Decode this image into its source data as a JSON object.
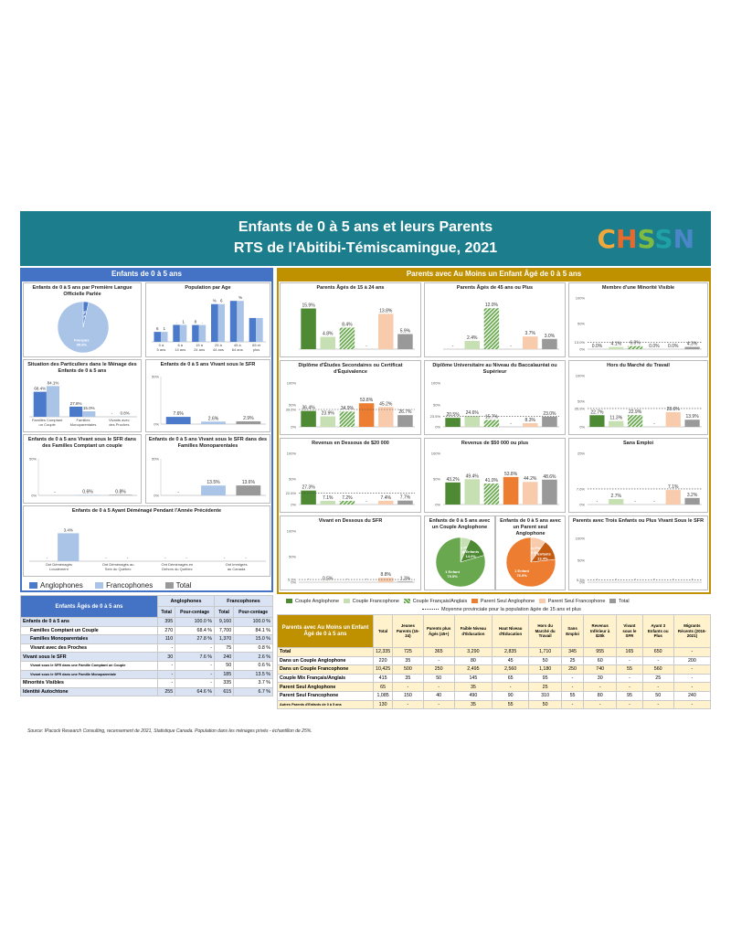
{
  "header": {
    "title_line1": "Enfants de 0 à 5 ans et leurs Parents",
    "title_line2": "RTS de l'Abitibi-Témiscamingue, 2021",
    "logo_text": "CHSSN",
    "colors": {
      "bg": "#1c7d8c",
      "logo_c": "#f0a83c",
      "logo_h": "#e66a2c",
      "logo_s1": "#7dbb42",
      "logo_s2": "#1fa1a8",
      "logo_n": "#4a86c8"
    }
  },
  "sections": {
    "left": "Enfants de 0 à 5 ans",
    "right": "Parents avec Au Moins un Enfant Âgé de 0 à 5 ans"
  },
  "colors": {
    "anglo": "#4a7ac9",
    "franco": "#aac4e8",
    "total": "#999999",
    "couple_anglo": "#4e8a34",
    "couple_franco": "#c6e0b4",
    "couple_mix": "#6aa84f",
    "parent_anglo": "#ed7d31",
    "parent_franco": "#f8cbad",
    "right_total": "#999999",
    "left_sec": "#4472c4",
    "right_sec": "#bf9000"
  },
  "legend_left": [
    "Anglophones",
    "Francophones",
    "Total"
  ],
  "legend_right": [
    "Couple Anglophone",
    "Couple Francophone",
    "Couple Français/Anglais",
    "Parent Seul Anglophone",
    "Parent Seul Francophone",
    "Total"
  ],
  "legend_right_line": "Moyenne provinciale pour la population âgée de 15 ans et plus",
  "chart_data": [
    {
      "id": "langue",
      "type": "pie",
      "title": "Enfants de 0 à 5 ans par Première Langue Officielle Parlée",
      "slices": [
        {
          "label": "Autres",
          "value": 0.0,
          "pct": "0.0%"
        },
        {
          "label": "Anglais",
          "value": 3.4,
          "pct": "3.4%"
        },
        {
          "label": "Français",
          "value": 95.6,
          "pct": "95.6%"
        }
      ]
    },
    {
      "id": "age",
      "type": "bar",
      "title": "Population par Age",
      "categories": [
        "0 à 5 ans",
        "6 à 14 ans",
        "15 à 24 ans",
        "25 à 44 ans",
        "45 à 64 ans",
        "65 et plus"
      ],
      "series": [
        {
          "name": "Anglophones",
          "values": [
            6.8,
            11.6,
            11.5,
            25.8,
            28.0,
            16.3
          ]
        },
        {
          "name": "Francophones",
          "values": [
            6.8,
            11.6,
            11.5,
            25.8,
            28.0,
            16.3
          ]
        }
      ],
      "labels": [
        "6.8%",
        "11.6%",
        "11.5%",
        "25.8%",
        "28.0%",
        "16.3%"
      ]
    },
    {
      "id": "menage",
      "type": "bar",
      "title": "Situation des Particuliers dans le Ménage des Enfants de 0 à 5 ans",
      "categories": [
        "Familles Comptant un Couple",
        "Familles Monoparentales",
        "Vivants avec des Proches"
      ],
      "series": [
        {
          "name": "Anglophones",
          "values": [
            68.4,
            27.8,
            0
          ]
        },
        {
          "name": "Francophones",
          "values": [
            84.1,
            15.0,
            0.8
          ]
        }
      ],
      "labels": [
        [
          "68.4%",
          "27.8%",
          "-"
        ],
        [
          "84.1%",
          "15.0%",
          "0.8%"
        ]
      ]
    },
    {
      "id": "sfr",
      "type": "bar",
      "title": "Enfants de 0 à 5 ans Vivant sous le SFR",
      "ylim": [
        0,
        50
      ],
      "yticks": [
        "50%",
        "0%"
      ],
      "values": [
        7.6,
        2.6,
        2.9
      ],
      "labels": [
        "7.6%",
        "2.6%",
        "2.9%"
      ]
    },
    {
      "id": "sfr_couple",
      "type": "bar",
      "title": "Enfants de 0 à 5 ans Vivant sous le SFR dans des Familles Comptant un couple",
      "ylim": [
        0,
        50
      ],
      "yticks": [
        "50%",
        "0%"
      ],
      "values": [
        0,
        0.6,
        0.8
      ],
      "labels": [
        "-",
        "0.6%",
        "0.8%"
      ]
    },
    {
      "id": "sfr_mono",
      "type": "bar",
      "title": "Enfants de 0 à 5 ans Vivant sous le SFR dans des Familles Monoparentales",
      "ylim": [
        0,
        50
      ],
      "yticks": [
        "50%",
        "0%"
      ],
      "values": [
        0,
        13.5,
        13.6
      ],
      "labels": [
        "-",
        "13.5%",
        "13.6%"
      ]
    },
    {
      "id": "demenage",
      "type": "bar",
      "title": "Enfants de 0 à 5 Ayant Déménagé Pendant l'Année Précédente",
      "categories": [
        "Ont Déménagés Localement",
        "Ont Déménagés au Sein du Québec",
        "Ont Déménagés en Dehors du Québec",
        "Ont Immigrés au Canada"
      ],
      "series": [
        {
          "name": "Anglophones",
          "values": [
            0,
            0,
            0,
            0
          ]
        },
        {
          "name": "Francophones",
          "values": [
            3.4,
            0,
            0,
            0
          ]
        }
      ],
      "labels": [
        [
          "-",
          "-",
          "-",
          "-"
        ],
        [
          "3.4%",
          "-",
          "-",
          "-"
        ]
      ]
    },
    {
      "id": "r1",
      "type": "bar",
      "title": "Parents Âgés de 15 à 24 ans",
      "ylim": [
        0,
        20
      ],
      "values": [
        15.9,
        4.8,
        8.4,
        0,
        13.8,
        5.9
      ],
      "labels": [
        "15.9%",
        "4.8%",
        "8.4%",
        "-",
        "13.8%",
        "5.9%"
      ]
    },
    {
      "id": "r2",
      "type": "bar",
      "title": "Parents Âgés de 45 ans ou Plus",
      "ylim": [
        0,
        15
      ],
      "values": [
        0,
        2.4,
        12.0,
        0,
        3.7,
        3.0
      ],
      "labels": [
        "-",
        "2.4%",
        "12.0%",
        "-",
        "3.7%",
        "3.0%"
      ]
    },
    {
      "id": "r3",
      "type": "bar",
      "title": "Membre d'une Minorité Visible",
      "ylim": [
        0,
        100
      ],
      "yticks": [
        "100%",
        "50%",
        "13.0%",
        "0%"
      ],
      "avg": 13.0,
      "values": [
        0,
        4.1,
        6.0,
        0,
        0,
        4.3
      ],
      "labels": [
        "0.0%",
        "4.1%",
        "6.0%",
        "0.0%",
        "0.0%",
        "4.3%"
      ]
    },
    {
      "id": "r4",
      "type": "bar",
      "title": "Diplôme d'Études Secondaires ou Certificat d'Équivalence",
      "ylim": [
        0,
        100
      ],
      "yticks": [
        "100%",
        "50%",
        "39.6%",
        "0%"
      ],
      "avg": 39.6,
      "values": [
        36.4,
        23.9,
        34.9,
        53.8,
        45.2,
        26.7
      ],
      "labels": [
        "36.4%",
        "23.9%",
        "34.9%",
        "53.8%",
        "45.2%",
        "26.7%"
      ]
    },
    {
      "id": "r5",
      "type": "bar",
      "title": "Diplôme Universitaire au Niveau du Baccalauréat ou Supérieur",
      "ylim": [
        0,
        100
      ],
      "yticks": [
        "100%",
        "50%",
        "23.5%",
        "0%"
      ],
      "avg": 23.5,
      "values": [
        20.5,
        24.6,
        15.7,
        0,
        8.3,
        23.0
      ],
      "labels": [
        "20.5%",
        "24.6%",
        "15.7%",
        "-",
        "8.3%",
        "23.0%"
      ]
    },
    {
      "id": "r6",
      "type": "bar",
      "title": "Hors du Marché du Travail",
      "ylim": [
        0,
        100
      ],
      "yticks": [
        "100%",
        "50%",
        "35.9%",
        "0%"
      ],
      "avg": 35.9,
      "values": [
        22.7,
        11.3,
        22.9,
        0,
        28.6,
        13.9
      ],
      "labels": [
        "22.7%",
        "11.3%",
        "22.9%",
        "-",
        "28.6%",
        "13.9%"
      ]
    },
    {
      "id": "r7",
      "type": "bar",
      "title": "Revenus en Dessous de $20 000",
      "ylim": [
        0,
        100
      ],
      "yticks": [
        "100%",
        "50%",
        "22.6%",
        "0%"
      ],
      "avg": 22.6,
      "values": [
        27.3,
        7.1,
        7.2,
        0,
        7.4,
        7.7
      ],
      "labels": [
        "27.3%",
        "7.1%",
        "7.2%",
        "-",
        "7.4%",
        "7.7%"
      ]
    },
    {
      "id": "r8",
      "type": "bar",
      "title": "Revenus de $50 000 ou plus",
      "ylim": [
        0,
        100
      ],
      "yticks": [
        "100%",
        "50%",
        "0%"
      ],
      "values": [
        43.2,
        49.4,
        41.0,
        53.8,
        44.2,
        48.6
      ],
      "labels": [
        "43.2%",
        "49.4%",
        "41.0%",
        "53.8%",
        "44.2%",
        "48.6%"
      ]
    },
    {
      "id": "r9",
      "type": "bar",
      "title": "Sans Emploi",
      "ylim": [
        0,
        25
      ],
      "yticks": [
        "25%",
        "7.6%",
        "0%"
      ],
      "avg": 7.6,
      "values": [
        0,
        2.7,
        0,
        0,
        7.1,
        3.2
      ],
      "labels": [
        "-",
        "2.7%",
        "-",
        "-",
        "7.1%",
        "3.2%"
      ]
    },
    {
      "id": "r10",
      "type": "bar",
      "title": "Vivant en Dessous du SFR",
      "ylim": [
        0,
        100
      ],
      "yticks": [
        "100%",
        "50%",
        "5.3%",
        "0%"
      ],
      "avg": 5.3,
      "values": [
        0,
        0.5,
        0,
        0,
        8.8,
        1.3
      ],
      "labels": [
        "-",
        "0.5%",
        "-",
        "-",
        "8.8%",
        "1.3%"
      ]
    },
    {
      "id": "pie_couple",
      "type": "pie",
      "title": "Enfants de 0 à 5 ans avec un Couple Anglophone",
      "slices": [
        {
          "label": "3 ou Plus",
          "pct": "6.6%",
          "value": 6.6
        },
        {
          "label": "2 Enfants",
          "pct": "14.0%",
          "value": 14.0
        },
        {
          "label": "1 Enfant",
          "pct": "79.5%",
          "value": 79.5
        }
      ]
    },
    {
      "id": "pie_parent",
      "type": "pie",
      "title": "Enfants de 0 à 5 ans avec un Parent seul Anglophone",
      "slices": [
        {
          "label": "3 ou Plus",
          "pct": "9.9%",
          "value": 9.9
        },
        {
          "label": "2 Enfants",
          "pct": "13.4%",
          "value": 13.4
        },
        {
          "label": "1 Enfant",
          "pct": "76.9%",
          "value": 76.9
        }
      ]
    },
    {
      "id": "r11",
      "type": "bar",
      "title": "Parents avec Trois Enfants ou Plus Vivant Sous le SFR",
      "ylim": [
        0,
        100
      ],
      "yticks": [
        "100%",
        "50%",
        "5.3%",
        "0%"
      ],
      "avg": 5.3,
      "values": [
        0,
        0,
        0,
        0,
        0,
        0
      ],
      "labels": [
        "-",
        "-",
        "-",
        "-",
        "-",
        "-"
      ]
    }
  ],
  "left_table": {
    "title": "Enfants Âgés de 0 à 5 ans",
    "groups": [
      "Anglophones",
      "Francophones"
    ],
    "cols": [
      "Total",
      "Pour-centage",
      "Total",
      "Pour-centage"
    ],
    "rows": [
      [
        "Enfants de 0 à 5 ans",
        "395",
        "100.0 %",
        "9,160",
        "100.0 %"
      ],
      [
        "Familles Comptant un Couple",
        "270",
        "68.4 %",
        "7,700",
        "84.1 %"
      ],
      [
        "Familles Monoparentales",
        "110",
        "27.8 %",
        "1,370",
        "15.0 %"
      ],
      [
        "Vivant avec des Proches",
        "-",
        "-",
        "75",
        "0.8 %"
      ],
      [
        "Vivant sous le SFR",
        "30",
        "7.6 %",
        "240",
        "2.6 %"
      ],
      [
        "Vivant sous le SFR dans une Famille Comptant un Couple",
        "-",
        "-",
        "50",
        "0.6 %"
      ],
      [
        "Vivant sous le SFR dans une Famille Monoparentale",
        "-",
        "-",
        "185",
        "13.5 %"
      ],
      [
        "Minorités Visibles",
        "-",
        "-",
        "335",
        "3.7 %"
      ],
      [
        "Identité Autochtone",
        "255",
        "64.6 %",
        "615",
        "6.7 %"
      ]
    ]
  },
  "right_table": {
    "title": "Parents avec Au Moins un Enfant Âgé de 0 à 5 ans",
    "cols": [
      "Total",
      "Jeunes Parents (15-24)",
      "Parents plus Âgés (45+)",
      "Faible Niveau d'Éducation",
      "Haut Niveau d'Éducation",
      "Hors du Marché du Travail",
      "Sans Emploi",
      "Revenus Inférieur à $20k",
      "Vivant sous le SFR",
      "Ayant 3 Enfants ou Plus",
      "Migrants Récents (2016-2021)"
    ],
    "rows": [
      [
        "Total",
        "12,335",
        "725",
        "365",
        "3,290",
        "2,835",
        "1,710",
        "345",
        "955",
        "165",
        "650",
        "-"
      ],
      [
        "Dans un Couple Anglophone",
        "220",
        "35",
        "-",
        "80",
        "45",
        "50",
        "25",
        "60",
        "-",
        "-",
        "200"
      ],
      [
        "Dans un Couple Francophone",
        "10,425",
        "500",
        "250",
        "2,495",
        "2,560",
        "1,180",
        "250",
        "740",
        "55",
        "560",
        "-"
      ],
      [
        "Couple Mix Français/Anglais",
        "415",
        "35",
        "50",
        "145",
        "65",
        "95",
        "-",
        "30",
        "-",
        "25",
        "-"
      ],
      [
        "Parent Seul Anglophone",
        "65",
        "-",
        "-",
        "35",
        "-",
        "25",
        "-",
        "-",
        "-",
        "-",
        "-"
      ],
      [
        "Parent Seul Francophone",
        "1,085",
        "150",
        "40",
        "490",
        "90",
        "310",
        "55",
        "80",
        "95",
        "50",
        "240"
      ],
      [
        "Autres Parents d'Enfants de 0 à 5 ans",
        "130",
        "-",
        "-",
        "35",
        "55",
        "50",
        "-",
        "-",
        "-",
        "-",
        "-"
      ]
    ]
  },
  "source": "Source: IPacock Research Consulting, recensement de 2021, Statistique Canada. Population dans les ménages privés - échantillon de 25%."
}
